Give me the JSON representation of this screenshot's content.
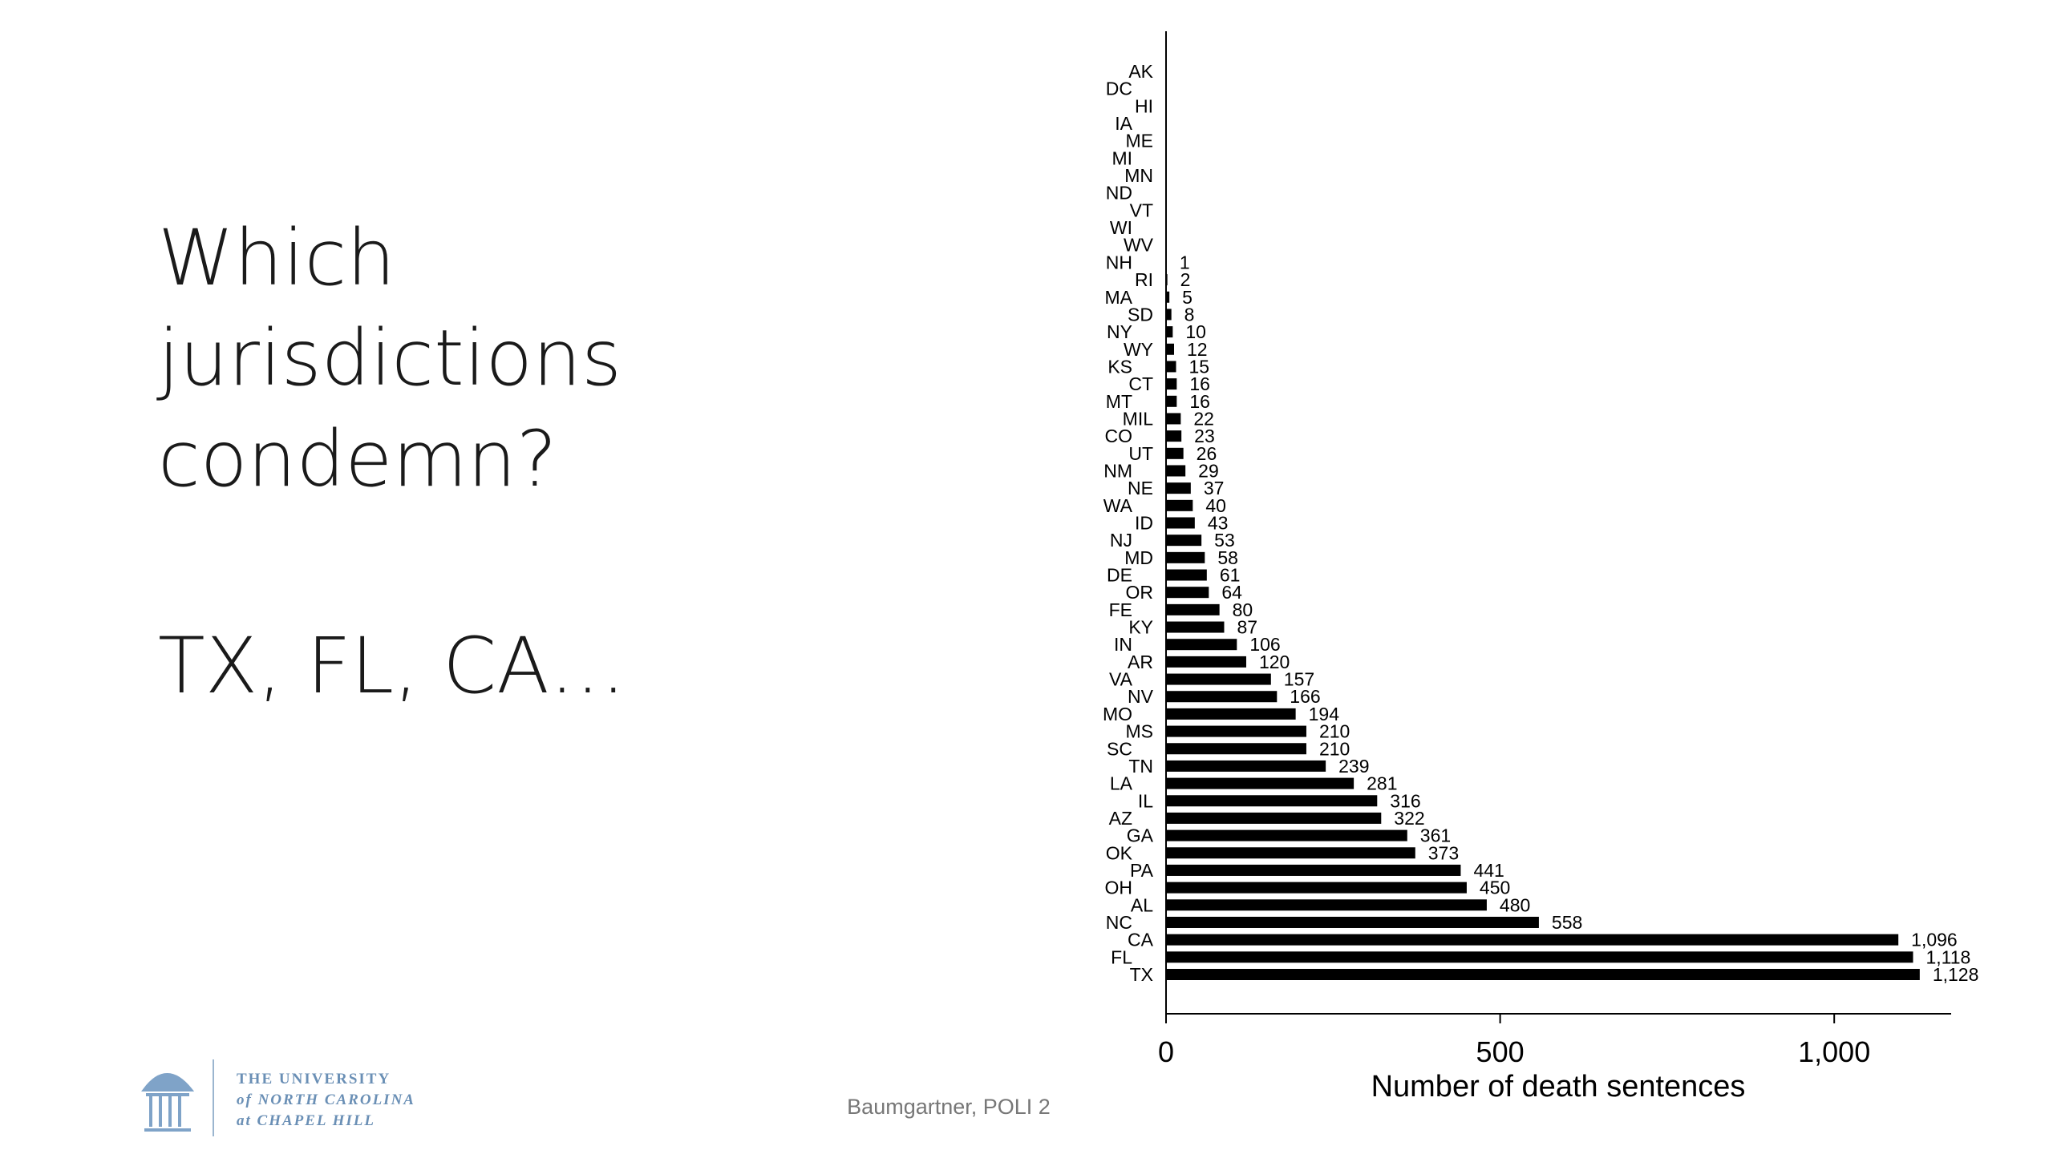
{
  "slide": {
    "title_lines": [
      "Which",
      "jurisdictions",
      "condemn?"
    ],
    "answer": "TX, FL, CA…",
    "footer": "Baumgartner, POLI 2",
    "logo_lines": [
      "THE UNIVERSITY",
      "of NORTH CAROLINA",
      "at CHAPEL HILL"
    ]
  },
  "chart_data": {
    "type": "hbar",
    "x_label": "Number of death sentences",
    "color": "#000000",
    "categories": [
      "AK",
      "DC",
      "HI",
      "IA",
      "ME",
      "MI",
      "MN",
      "ND",
      "VT",
      "WI",
      "WV",
      "NH",
      "RI",
      "MA",
      "SD",
      "NY",
      "WY",
      "KS",
      "CT",
      "MT",
      "MIL",
      "CO",
      "UT",
      "NM",
      "NE",
      "WA",
      "ID",
      "NJ",
      "MD",
      "DE",
      "OR",
      "FE",
      "KY",
      "IN",
      "AR",
      "VA",
      "NV",
      "MO",
      "MS",
      "SC",
      "TN",
      "LA",
      "IL",
      "AZ",
      "GA",
      "OK",
      "PA",
      "OH",
      "AL",
      "NC",
      "CA",
      "FL",
      "TX"
    ],
    "values": [
      0,
      0,
      0,
      0,
      0,
      0,
      0,
      0,
      0,
      0,
      0,
      1,
      2,
      5,
      8,
      10,
      12,
      15,
      16,
      16,
      22,
      23,
      26,
      29,
      37,
      40,
      43,
      53,
      58,
      61,
      64,
      80,
      87,
      106,
      120,
      157,
      166,
      194,
      210,
      210,
      239,
      281,
      316,
      322,
      361,
      373,
      441,
      450,
      480,
      558,
      1096,
      1118,
      1128
    ],
    "value_labels": [
      null,
      null,
      null,
      null,
      null,
      null,
      null,
      null,
      null,
      null,
      null,
      "1",
      "2",
      "5",
      "8",
      "10",
      "12",
      "15",
      "16",
      "16",
      "22",
      "23",
      "26",
      "29",
      "37",
      "40",
      "43",
      "53",
      "58",
      "61",
      "64",
      "80",
      "87",
      "106",
      "120",
      "157",
      "166",
      "194",
      "210",
      "210",
      "239",
      "281",
      "316",
      "322",
      "361",
      "373",
      "441",
      "450",
      "480",
      "558",
      "1,096",
      "1,118",
      "1,128"
    ],
    "xlim": [
      0,
      1175
    ],
    "xticks": [
      0,
      500,
      {
        "value": 1000,
        "label": "1,000"
      }
    ],
    "grid": false
  }
}
